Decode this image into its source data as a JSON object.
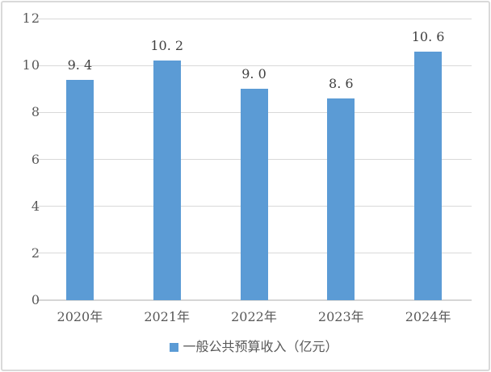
{
  "chart_data": {
    "type": "bar",
    "title": "",
    "xlabel": "",
    "ylabel": "",
    "categories": [
      "2020年",
      "2021年",
      "2022年",
      "2023年",
      "2024年"
    ],
    "values": [
      9.4,
      10.2,
      9.0,
      8.6,
      10.6
    ],
    "value_labels": [
      "9. 4",
      "10. 2",
      "9. 0",
      "8. 6",
      "10. 6"
    ],
    "ylim": [
      0,
      12
    ],
    "yticks": [
      0,
      2,
      4,
      6,
      8,
      10,
      12
    ],
    "grid": true,
    "legend": {
      "label": "一般公共预算收入（亿元）",
      "position": "bottom",
      "marker": "square-icon"
    },
    "colors": {
      "bar": "#5b9bd5",
      "gridline": "#d9d9d9",
      "axis_line": "#d6d6d6",
      "tick_text": "#595959",
      "data_label_text": "#404040",
      "frame_border": "#d9d9d9",
      "background": "#ffffff"
    }
  }
}
